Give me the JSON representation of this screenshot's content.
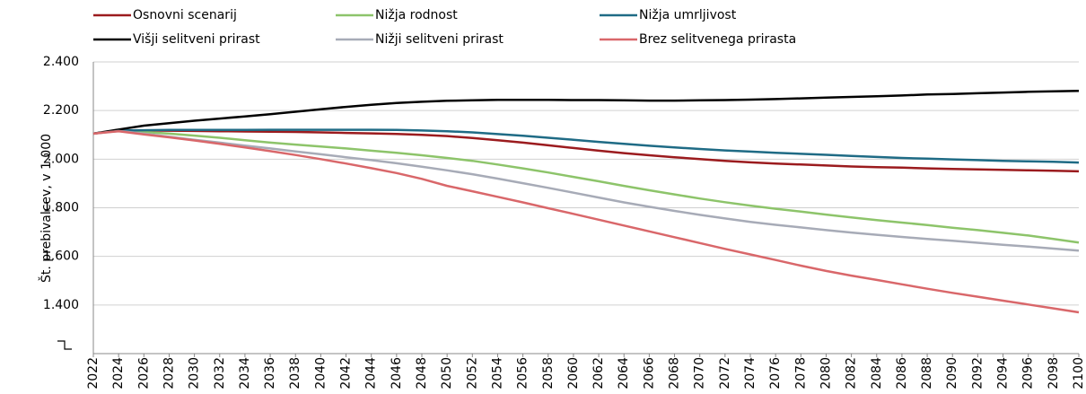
{
  "chart_data": {
    "type": "line",
    "y_label": "Št. prebivalcev, v 1.000",
    "x": [
      2022,
      2024,
      2026,
      2028,
      2030,
      2032,
      2034,
      2036,
      2038,
      2040,
      2042,
      2044,
      2046,
      2048,
      2050,
      2052,
      2054,
      2056,
      2058,
      2060,
      2062,
      2064,
      2066,
      2068,
      2070,
      2072,
      2074,
      2076,
      2078,
      2080,
      2082,
      2084,
      2086,
      2088,
      2090,
      2092,
      2094,
      2096,
      2098,
      2100
    ],
    "xlim": [
      2022,
      2100
    ],
    "ylim": [
      1200,
      2400
    ],
    "yticks": [
      {
        "value": 1400,
        "label": "1.400"
      },
      {
        "value": 1600,
        "label": "1.600"
      },
      {
        "value": 1800,
        "label": "1.800"
      },
      {
        "value": 2000,
        "label": "2.000"
      },
      {
        "value": 2200,
        "label": "2.200"
      },
      {
        "value": 2400,
        "label": "2.400"
      }
    ],
    "grid": true,
    "legend": "top",
    "series": [
      {
        "name": "Osnovni scenarij",
        "color": "#9b1b1e",
        "values": [
          2105,
          2118,
          2118,
          2117,
          2116,
          2115,
          2114,
          2113,
          2112,
          2110,
          2108,
          2106,
          2104,
          2100,
          2095,
          2087,
          2078,
          2068,
          2057,
          2046,
          2035,
          2025,
          2016,
          2008,
          2000,
          1993,
          1987,
          1982,
          1978,
          1974,
          1970,
          1967,
          1965,
          1962,
          1960,
          1958,
          1956,
          1954,
          1952,
          1950
        ]
      },
      {
        "name": "Nižja rodnost",
        "color": "#8dc46a",
        "values": [
          2105,
          2118,
          2112,
          2105,
          2097,
          2088,
          2078,
          2068,
          2060,
          2052,
          2044,
          2035,
          2026,
          2016,
          2005,
          1993,
          1978,
          1962,
          1945,
          1927,
          1909,
          1890,
          1872,
          1855,
          1838,
          1823,
          1809,
          1796,
          1784,
          1772,
          1760,
          1749,
          1739,
          1729,
          1718,
          1708,
          1697,
          1686,
          1672,
          1657
        ]
      },
      {
        "name": "Nižja umrljivost",
        "color": "#1f6b85",
        "values": [
          2105,
          2118,
          2119,
          2120,
          2120,
          2120,
          2120,
          2121,
          2121,
          2121,
          2121,
          2121,
          2120,
          2118,
          2115,
          2110,
          2103,
          2096,
          2088,
          2080,
          2071,
          2063,
          2055,
          2048,
          2042,
          2036,
          2031,
          2026,
          2022,
          2018,
          2013,
          2009,
          2005,
          2002,
          1999,
          1996,
          1993,
          1991,
          1989,
          1986
        ]
      },
      {
        "name": "Višji selitveni prirast",
        "color": "#000000",
        "values": [
          2105,
          2122,
          2138,
          2148,
          2158,
          2167,
          2176,
          2185,
          2195,
          2205,
          2215,
          2224,
          2231,
          2236,
          2240,
          2242,
          2244,
          2244,
          2244,
          2243,
          2243,
          2242,
          2241,
          2241,
          2242,
          2243,
          2245,
          2247,
          2250,
          2253,
          2256,
          2259,
          2262,
          2266,
          2268,
          2271,
          2274,
          2277,
          2279,
          2281
        ]
      },
      {
        "name": "Nižji selitveni prirast",
        "color": "#a7abb7",
        "values": [
          2105,
          2116,
          2105,
          2092,
          2080,
          2068,
          2056,
          2044,
          2032,
          2020,
          2008,
          1996,
          1983,
          1969,
          1954,
          1938,
          1920,
          1901,
          1882,
          1862,
          1842,
          1822,
          1804,
          1787,
          1771,
          1756,
          1742,
          1730,
          1719,
          1708,
          1698,
          1689,
          1680,
          1672,
          1664,
          1656,
          1648,
          1640,
          1632,
          1624
        ]
      },
      {
        "name": "Brez selitvenega prirasta",
        "color": "#d9676a",
        "values": [
          2105,
          2115,
          2102,
          2090,
          2077,
          2063,
          2048,
          2033,
          2017,
          2000,
          1982,
          1963,
          1943,
          1919,
          1890,
          1868,
          1845,
          1822,
          1798,
          1775,
          1751,
          1727,
          1703,
          1679,
          1655,
          1631,
          1608,
          1585,
          1562,
          1540,
          1521,
          1503,
          1485,
          1467,
          1450,
          1434,
          1418,
          1402,
          1386,
          1370
        ]
      }
    ]
  }
}
